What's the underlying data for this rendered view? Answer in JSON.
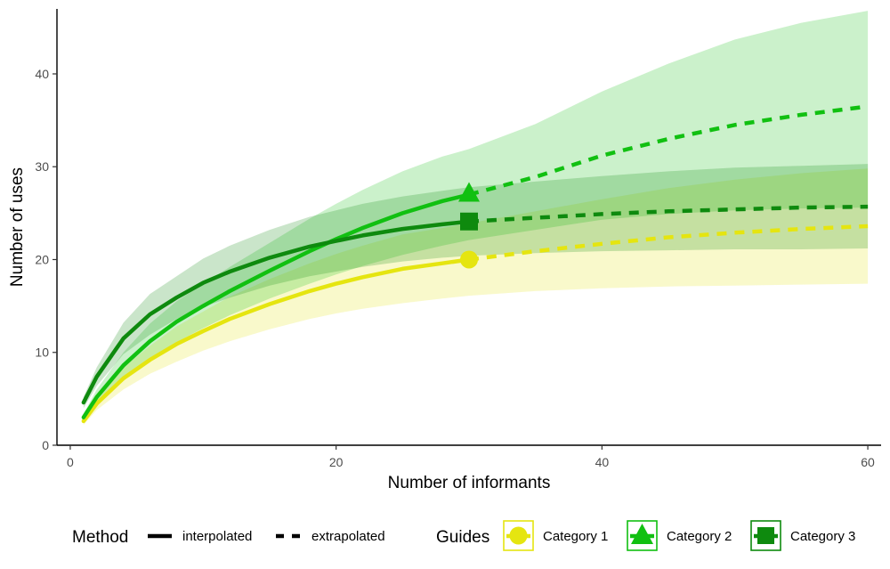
{
  "chart_data": {
    "type": "line",
    "title": "",
    "xlabel": "Number of informants",
    "ylabel": "Number of uses",
    "xlim": [
      -1,
      61
    ],
    "ylim": [
      0,
      47
    ],
    "x_ticks": [
      0,
      20,
      40,
      60
    ],
    "y_ticks": [
      0,
      10,
      20,
      30,
      40
    ],
    "grid": false,
    "legend_position": "bottom",
    "observed_x": 30,
    "series": [
      {
        "name": "Category 1",
        "color": "#E5E510",
        "marker": "circle",
        "x": [
          1,
          2,
          4,
          6,
          8,
          10,
          12,
          15,
          18,
          20,
          22,
          25,
          28,
          30,
          35,
          40,
          45,
          50,
          55,
          60
        ],
        "values": [
          2.6,
          4.5,
          7.2,
          9.2,
          10.9,
          12.3,
          13.6,
          15.2,
          16.6,
          17.4,
          18.1,
          19.0,
          19.6,
          20.0,
          20.9,
          21.7,
          22.4,
          22.9,
          23.3,
          23.6
        ],
        "lower": [
          2.2,
          3.8,
          6.0,
          7.7,
          9.0,
          10.2,
          11.2,
          12.5,
          13.6,
          14.2,
          14.7,
          15.3,
          15.8,
          16.1,
          16.6,
          16.9,
          17.1,
          17.2,
          17.3,
          17.4
        ],
        "upper": [
          3.0,
          5.2,
          8.4,
          10.7,
          12.8,
          14.4,
          16.0,
          17.9,
          19.6,
          20.6,
          21.5,
          22.7,
          23.4,
          23.9,
          25.2,
          26.5,
          27.7,
          28.6,
          29.3,
          29.8
        ]
      },
      {
        "name": "Category 2",
        "color": "#11C011",
        "marker": "triangle",
        "x": [
          1,
          2,
          4,
          6,
          8,
          10,
          12,
          15,
          18,
          20,
          22,
          25,
          28,
          30,
          35,
          40,
          45,
          50,
          55,
          60
        ],
        "values": [
          3.0,
          5.2,
          8.6,
          11.2,
          13.3,
          15.0,
          16.6,
          18.8,
          20.9,
          22.2,
          23.4,
          25.0,
          26.3,
          27.0,
          28.9,
          31.2,
          33.0,
          34.5,
          35.6,
          36.5
        ],
        "lower": [
          2.6,
          4.4,
          7.2,
          9.3,
          11.1,
          12.6,
          14.0,
          15.8,
          17.4,
          18.4,
          19.3,
          20.5,
          21.5,
          22.1,
          23.2,
          24.3,
          24.9,
          25.3,
          25.5,
          25.6
        ],
        "upper": [
          3.4,
          6.0,
          10.0,
          13.1,
          15.5,
          17.4,
          19.2,
          21.8,
          24.4,
          26.0,
          27.5,
          29.5,
          31.1,
          31.9,
          34.6,
          38.1,
          41.1,
          43.7,
          45.5,
          46.8
        ]
      },
      {
        "name": "Category 3",
        "color": "#0E8A0E",
        "marker": "square",
        "x": [
          1,
          2,
          4,
          6,
          8,
          10,
          12,
          15,
          18,
          20,
          22,
          25,
          28,
          30,
          35,
          40,
          45,
          50,
          55,
          60
        ],
        "values": [
          4.6,
          7.4,
          11.5,
          14.1,
          15.9,
          17.5,
          18.7,
          20.2,
          21.4,
          22.0,
          22.6,
          23.3,
          23.8,
          24.1,
          24.5,
          24.9,
          25.2,
          25.4,
          25.6,
          25.7
        ],
        "lower": [
          4.0,
          6.4,
          9.8,
          11.9,
          13.6,
          14.9,
          15.9,
          17.2,
          18.2,
          18.7,
          19.2,
          19.8,
          20.2,
          20.4,
          20.7,
          20.9,
          21.0,
          21.1,
          21.1,
          21.2
        ],
        "upper": [
          5.2,
          8.4,
          13.2,
          16.3,
          18.2,
          20.1,
          21.5,
          23.2,
          24.6,
          25.3,
          26.0,
          26.8,
          27.4,
          27.8,
          28.4,
          29.0,
          29.5,
          29.9,
          30.1,
          30.3
        ]
      }
    ],
    "legend": {
      "method_title": "Method",
      "method_items": [
        "interpolated",
        "extrapolated"
      ],
      "guides_title": "Guides",
      "guides_items": [
        "Category 1",
        "Category 2",
        "Category 3"
      ]
    }
  }
}
